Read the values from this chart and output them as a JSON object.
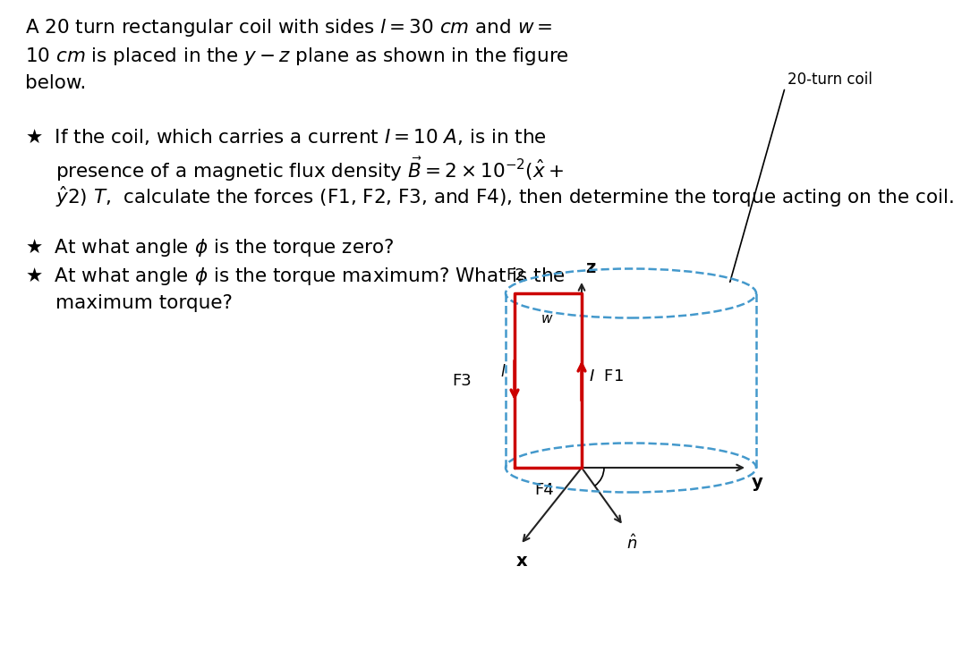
{
  "bg_color": "#ffffff",
  "text_color": "#000000",
  "red_color": "#cc0000",
  "blue_dashed_color": "#4499cc",
  "axis_color": "#222222",
  "star": "★",
  "title_line1": "A 20 turn rectangular coil with sides $l = 30$ $cm$ and $w =$",
  "title_line2": "10 $cm$ is placed in the $y - z$ plane as shown in the figure",
  "title_line3": "below.",
  "b1l1": "If the coil, which carries a current $I = 10$ $A$, is in the",
  "b1l2": "presence of a magnetic flux density $\\vec{B} = 2 \\times 10^{-2}(\\hat{x} +$",
  "b1l3": "$\\hat{y}2)$ $T$,  calculate the forces (F1, F2, F3, and F4), then determine the torque acting on the coil.",
  "b2": "At what angle $\\phi$ is the torque zero?",
  "b3l1": "At what angle $\\phi$ is the torque maximum? What is the",
  "b3l2": "maximum torque?"
}
